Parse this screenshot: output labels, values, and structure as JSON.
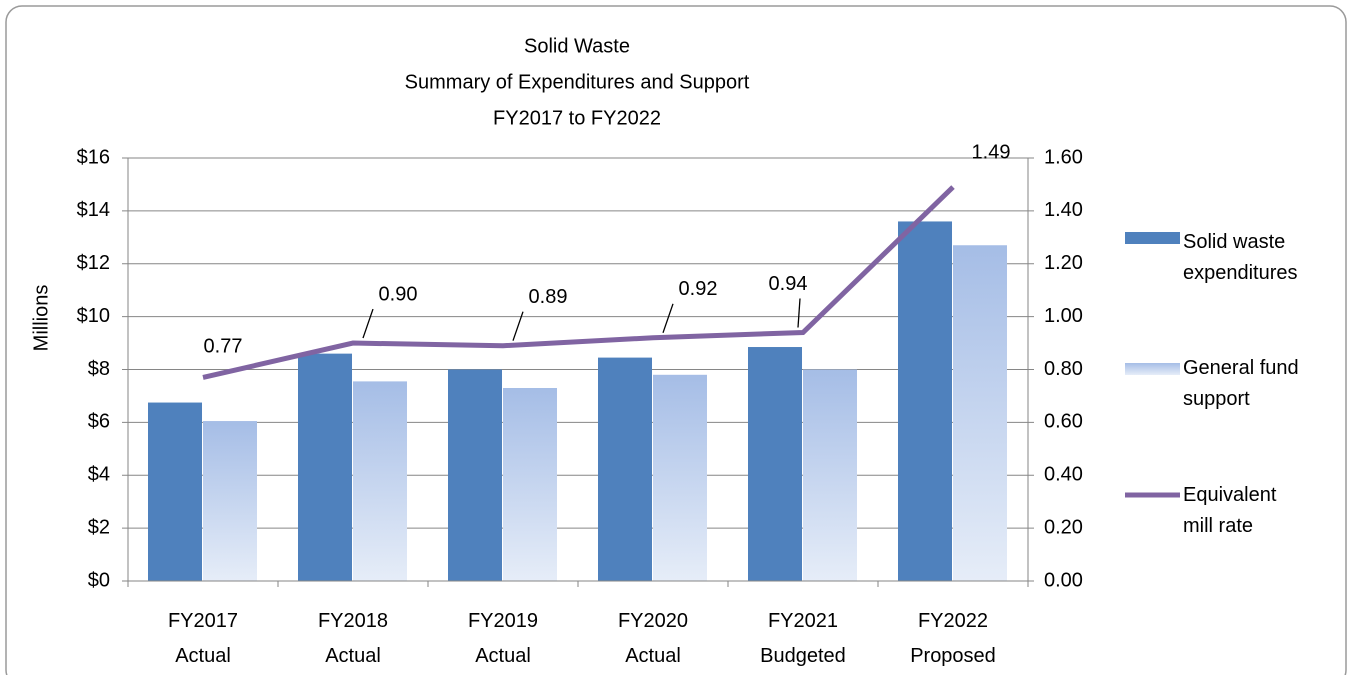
{
  "chart_data": {
    "type": "bar",
    "title": [
      "Solid Waste",
      "Summary of Expenditures and Support",
      "FY2017 to FY2022"
    ],
    "y_label": "Millions",
    "categories": [
      [
        "FY2017",
        "Actual"
      ],
      [
        "FY2018",
        "Actual"
      ],
      [
        "FY2019",
        "Actual"
      ],
      [
        "FY2020",
        "Actual"
      ],
      [
        "FY2021",
        "Budgeted"
      ],
      [
        "FY2022",
        "Proposed"
      ]
    ],
    "series": [
      {
        "name": "Solid waste expenditures",
        "type": "bar",
        "color": "#4f81bd",
        "values": [
          6.75,
          8.6,
          8.0,
          8.45,
          8.85,
          13.6
        ]
      },
      {
        "name": "General fund support",
        "type": "bar",
        "color": "#a5bde6",
        "values": [
          6.05,
          7.55,
          7.3,
          7.8,
          8.0,
          12.7
        ]
      },
      {
        "name": "Equivalent mill rate",
        "type": "line",
        "axis": "y2",
        "color": "#8064a2",
        "values": [
          0.77,
          0.9,
          0.89,
          0.92,
          0.94,
          1.49
        ],
        "value_labels": [
          "0.77",
          "0.90",
          "0.89",
          "0.92",
          "0.94",
          "1.49"
        ]
      }
    ],
    "ylim": [
      0,
      16
    ],
    "yticks": [
      {
        "value": 0,
        "label": "$0"
      },
      {
        "value": 2,
        "label": "$2"
      },
      {
        "value": 4,
        "label": "$4"
      },
      {
        "value": 6,
        "label": "$6"
      },
      {
        "value": 8,
        "label": "$8"
      },
      {
        "value": 10,
        "label": "$10"
      },
      {
        "value": 12,
        "label": "$12"
      },
      {
        "value": 14,
        "label": "$14"
      },
      {
        "value": 16,
        "label": "$16"
      }
    ],
    "y2lim": [
      0,
      1.6
    ],
    "y2ticks": [
      {
        "value": 0,
        "label": "0.00"
      },
      {
        "value": 0.2,
        "label": "0.20"
      },
      {
        "value": 0.4,
        "label": "0.40"
      },
      {
        "value": 0.6,
        "label": "0.60"
      },
      {
        "value": 0.8,
        "label": "0.80"
      },
      {
        "value": 1,
        "label": "1.00"
      },
      {
        "value": 1.2,
        "label": "1.20"
      },
      {
        "value": 1.4,
        "label": "1.40"
      },
      {
        "value": 1.6,
        "label": "1.60"
      }
    ],
    "grid": true,
    "legend": "right"
  }
}
